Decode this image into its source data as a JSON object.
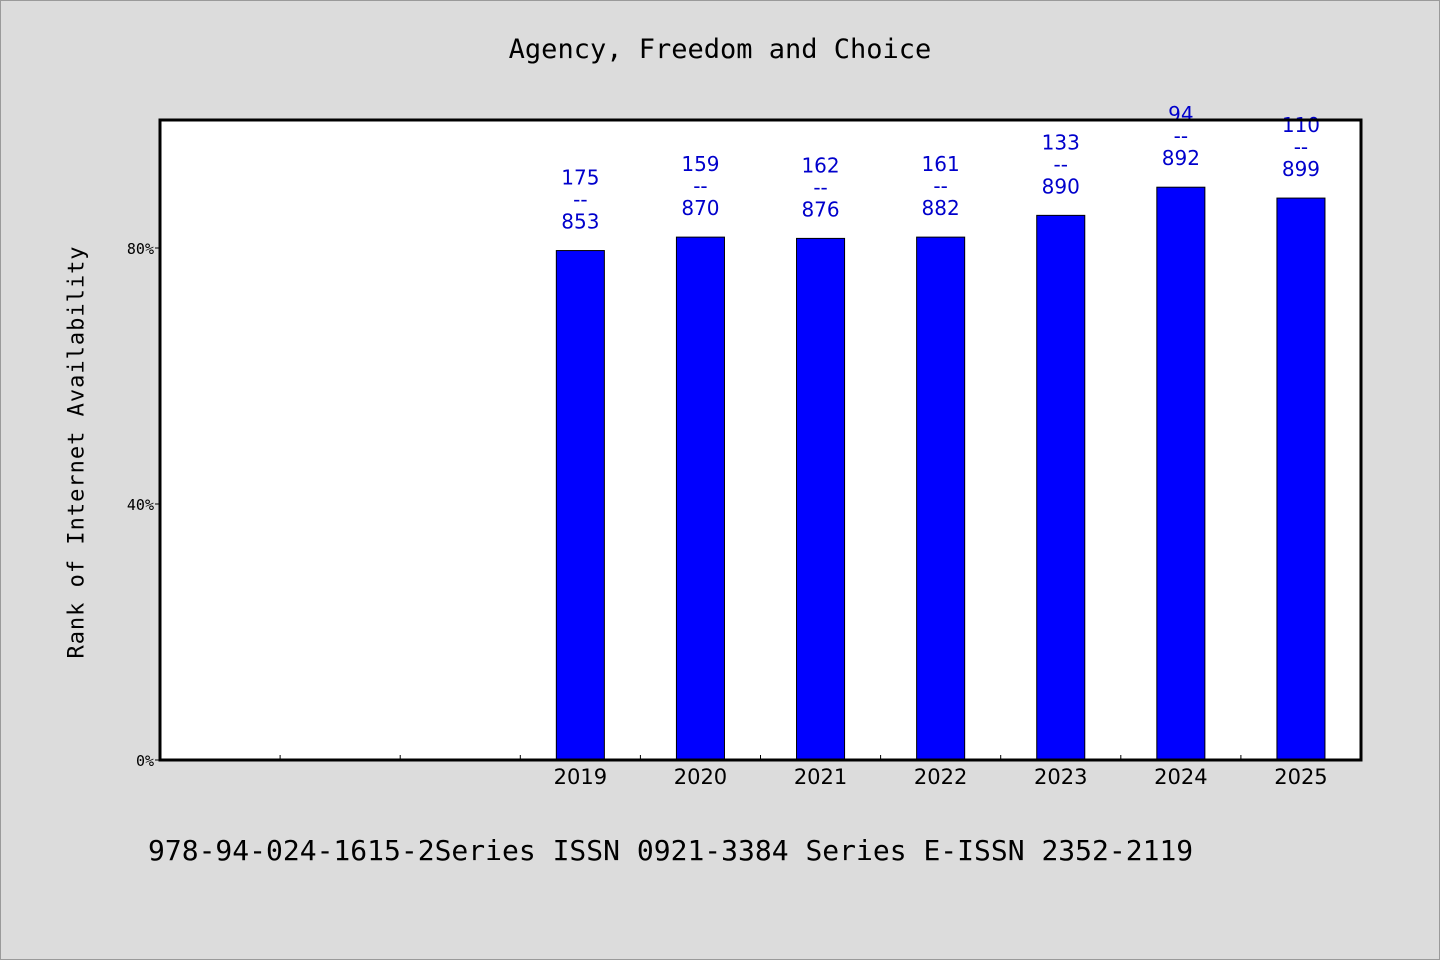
{
  "chart_data": {
    "type": "bar",
    "title": "Agency, Freedom and Choice",
    "xlabel": "",
    "ylabel": "Rank of Internet Availability",
    "categories": [
      "",
      "",
      "",
      "2019",
      "2020",
      "2021",
      "2022",
      "2023",
      "2024",
      "2025"
    ],
    "values": [
      null,
      null,
      null,
      79.6,
      81.7,
      81.5,
      81.7,
      85.1,
      89.5,
      87.8
    ],
    "data_labels": [
      null,
      null,
      null,
      {
        "rank": "175",
        "sep": "--",
        "total": "853"
      },
      {
        "rank": "159",
        "sep": "--",
        "total": "870"
      },
      {
        "rank": "162",
        "sep": "--",
        "total": "876"
      },
      {
        "rank": "161",
        "sep": "--",
        "total": "882"
      },
      {
        "rank": "133",
        "sep": "--",
        "total": "890"
      },
      {
        "rank": "94",
        "sep": "--",
        "total": "892"
      },
      {
        "rank": "110",
        "sep": "--",
        "total": "899"
      }
    ],
    "ylim": [
      0,
      100
    ],
    "yticks": [
      0,
      40,
      80
    ],
    "ytick_labels": [
      "0%",
      "40%",
      "80%"
    ],
    "grid": false,
    "legend": "none",
    "bar_color": "#0000ff",
    "label_color": "#0000cc"
  },
  "footer": {
    "text": "978-94-024-1615-2Series ISSN 0921-3384 Series E-ISSN 2352-2119"
  }
}
